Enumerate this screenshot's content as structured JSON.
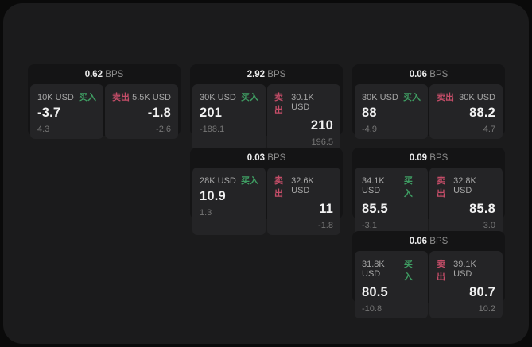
{
  "labels": {
    "bps_unit": "BPS",
    "buy": "买入",
    "sell": "卖出"
  },
  "colors": {
    "background": "#1b1b1c",
    "card": "#141415",
    "panel": "#242426",
    "buy_green": "#3f9e63",
    "sell_red": "#c44d68"
  },
  "cards": [
    {
      "bps": "0.62",
      "buy": {
        "amount": "10K USD",
        "main": "-3.7",
        "sub": "4.3"
      },
      "sell": {
        "amount": "5.5K USD",
        "main": "-1.8",
        "sub": "-2.6"
      }
    },
    {
      "bps": "2.92",
      "buy": {
        "amount": "30K USD",
        "main": "201",
        "sub": "-188.1"
      },
      "sell": {
        "amount": "30.1K USD",
        "main": "210",
        "sub": "196.5"
      }
    },
    {
      "bps": "0.06",
      "buy": {
        "amount": "30K USD",
        "main": "88",
        "sub": "-4.9"
      },
      "sell": {
        "amount": "30K USD",
        "main": "88.2",
        "sub": "4.7"
      }
    },
    {
      "bps": "0.03",
      "buy": {
        "amount": "28K USD",
        "main": "10.9",
        "sub": "1.3"
      },
      "sell": {
        "amount": "32.6K USD",
        "main": "11",
        "sub": "-1.8"
      }
    },
    {
      "bps": "0.09",
      "buy": {
        "amount": "34.1K USD",
        "main": "85.5",
        "sub": "-3.1"
      },
      "sell": {
        "amount": "32.8K USD",
        "main": "85.8",
        "sub": "3.0"
      }
    },
    {
      "bps": "0.06",
      "buy": {
        "amount": "31.8K USD",
        "main": "80.5",
        "sub": "-10.8"
      },
      "sell": {
        "amount": "39.1K USD",
        "main": "80.7",
        "sub": "10.2"
      }
    }
  ]
}
